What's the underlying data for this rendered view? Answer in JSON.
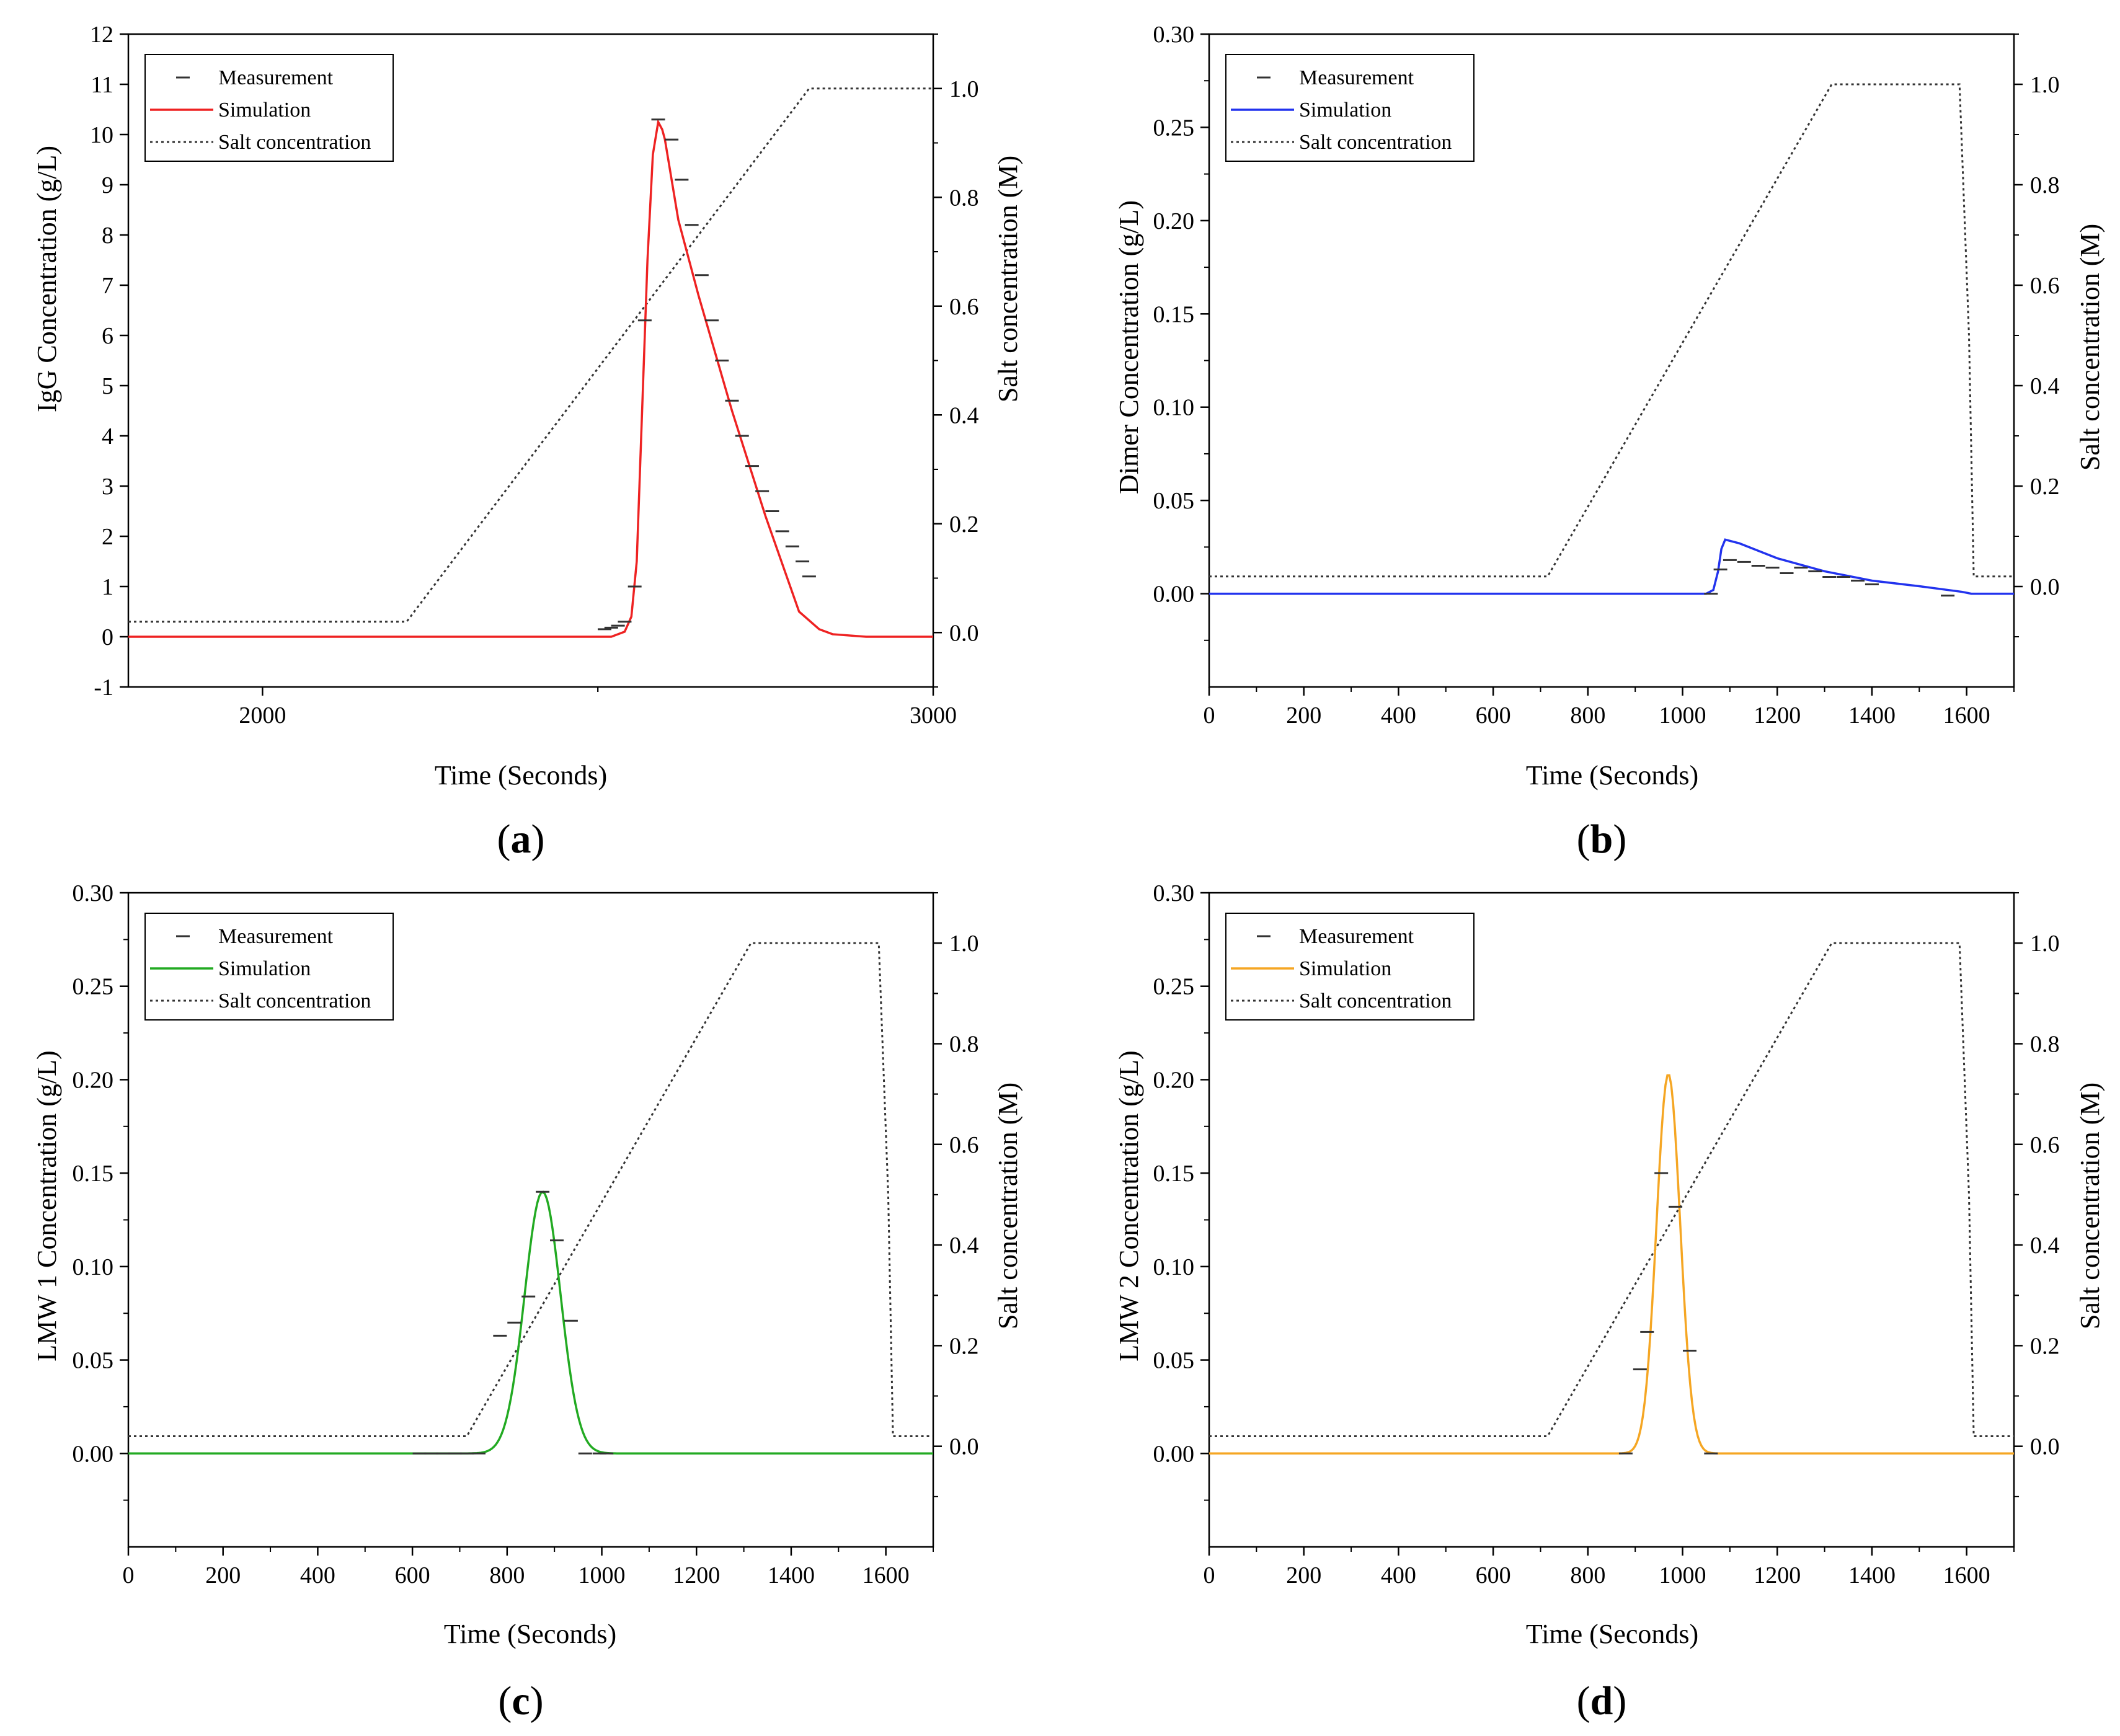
{
  "colors": {
    "axis": "#000000",
    "salt_line": "#333333",
    "measurement": "#333333",
    "sim_a": "#ee2222",
    "sim_b": "#2233ee",
    "sim_c": "#22aa22",
    "sim_d": "#f5a623"
  },
  "chart_data": [
    {
      "id": "a",
      "type": "line",
      "panel_label": "(a)",
      "panel_letter": "a",
      "xlabel": "Time (Seconds)",
      "ylabel": "IgG Concentration (g/L)",
      "y2label": "Salt concentration (M)",
      "xlim": [
        1800,
        3000
      ],
      "ylim": [
        -1,
        12
      ],
      "y2lim": [
        -0.1,
        1.1
      ],
      "xticks": [
        2000,
        3000
      ],
      "xtick_labels": [
        "2000",
        "3000"
      ],
      "yticks": [
        -1,
        0,
        1,
        2,
        3,
        4,
        5,
        6,
        7,
        8,
        9,
        10,
        11,
        12
      ],
      "ytick_labels": [
        "-1",
        "0",
        "1",
        "2",
        "3",
        "4",
        "5",
        "6",
        "7",
        "8",
        "9",
        "10",
        "11",
        "12"
      ],
      "y2ticks": [
        0,
        0.2,
        0.4,
        0.6,
        0.8,
        1.0
      ],
      "y2tick_labels": [
        "0.0",
        "0.2",
        "0.4",
        "0.6",
        "0.8",
        "1.0"
      ],
      "legend": [
        "Measurement",
        "Simulation",
        "Salt concentration"
      ],
      "legend_position": "top-left",
      "series": [
        {
          "name": "Simulation",
          "kind": "line",
          "color_key": "sim_a",
          "x": [
            1800,
            2400,
            2520,
            2540,
            2550,
            2558,
            2566,
            2574,
            2582,
            2590,
            2596,
            2600,
            2620,
            2650,
            2700,
            2750,
            2800,
            2830,
            2850,
            2900,
            3000
          ],
          "y": [
            0,
            0,
            0,
            0.1,
            0.4,
            1.5,
            4.5,
            7.5,
            9.6,
            10.25,
            10.1,
            9.9,
            8.3,
            6.8,
            4.5,
            2.4,
            0.5,
            0.15,
            0.05,
            0,
            0
          ]
        },
        {
          "name": "Measurement",
          "kind": "points",
          "color_key": "measurement",
          "x": [
            2510,
            2520,
            2530,
            2540,
            2555,
            2570,
            2590,
            2610,
            2625,
            2640,
            2655,
            2670,
            2685,
            2700,
            2715,
            2730,
            2745,
            2760,
            2775,
            2790,
            2805,
            2815
          ],
          "y": [
            0.15,
            0.18,
            0.22,
            0.3,
            1.0,
            6.3,
            10.3,
            9.9,
            9.1,
            8.2,
            7.2,
            6.3,
            5.5,
            4.7,
            4.0,
            3.4,
            2.9,
            2.5,
            2.1,
            1.8,
            1.5,
            1.2
          ]
        },
        {
          "name": "Salt concentration",
          "kind": "dotted",
          "color_key": "salt_line",
          "axis": "y2",
          "x": [
            1800,
            2215,
            2815,
            3000
          ],
          "y": [
            0.02,
            0.02,
            1.0,
            1.0
          ]
        }
      ]
    },
    {
      "id": "b",
      "type": "line",
      "panel_label": "(b)",
      "panel_letter": "b",
      "xlabel": "Time (Seconds)",
      "ylabel": "Dimer Concentration (g/L)",
      "y2label": "Salt concentration (M)",
      "xlim": [
        0,
        1700
      ],
      "ylim": [
        -0.05,
        0.3
      ],
      "y2lim": [
        -0.2,
        1.1
      ],
      "xticks": [
        0,
        200,
        400,
        600,
        800,
        1000,
        1200,
        1400,
        1600
      ],
      "xtick_labels": [
        "0",
        "200",
        "400",
        "600",
        "800",
        "1000",
        "1200",
        "1400",
        "1600"
      ],
      "yticks": [
        0,
        0.05,
        0.1,
        0.15,
        0.2,
        0.25,
        0.3
      ],
      "ytick_labels": [
        "0.00",
        "0.05",
        "0.10",
        "0.15",
        "0.20",
        "0.25",
        "0.30"
      ],
      "y2ticks": [
        0,
        0.2,
        0.4,
        0.6,
        0.8,
        1.0
      ],
      "y2tick_labels": [
        "0.0",
        "0.2",
        "0.4",
        "0.6",
        "0.8",
        "1.0"
      ],
      "legend": [
        "Measurement",
        "Simulation",
        "Salt concentration"
      ],
      "legend_position": "top-left",
      "series": [
        {
          "name": "Simulation",
          "kind": "line",
          "color_key": "sim_b",
          "x": [
            0,
            1050,
            1065,
            1075,
            1082,
            1090,
            1120,
            1200,
            1300,
            1400,
            1500,
            1590,
            1610,
            1700
          ],
          "y": [
            0,
            0,
            0.002,
            0.012,
            0.024,
            0.029,
            0.027,
            0.019,
            0.012,
            0.007,
            0.004,
            0.001,
            0,
            0
          ]
        },
        {
          "name": "Measurement",
          "kind": "points",
          "color_key": "measurement",
          "x": [
            1060,
            1080,
            1100,
            1130,
            1160,
            1190,
            1220,
            1250,
            1280,
            1310,
            1340,
            1370,
            1400,
            1560
          ],
          "y": [
            0.0,
            0.013,
            0.018,
            0.017,
            0.015,
            0.014,
            0.011,
            0.014,
            0.012,
            0.009,
            0.009,
            0.007,
            0.005,
            -0.001
          ]
        },
        {
          "name": "Salt concentration",
          "kind": "dotted",
          "color_key": "salt_line",
          "axis": "y2",
          "x": [
            0,
            715,
            1315,
            1585,
            1605,
            1615,
            1700
          ],
          "y": [
            0.02,
            0.02,
            1.0,
            1.0,
            0.5,
            0.02,
            0.02
          ]
        }
      ]
    },
    {
      "id": "c",
      "type": "line",
      "panel_label": "(c)",
      "panel_letter": "c",
      "xlabel": "Time (Seconds)",
      "ylabel": "LMW 1 Concentration (g/L)",
      "y2label": "Salt concentration (M)",
      "xlim": [
        0,
        1700
      ],
      "ylim": [
        -0.05,
        0.3
      ],
      "y2lim": [
        -0.2,
        1.1
      ],
      "xticks": [
        0,
        200,
        400,
        600,
        800,
        1000,
        1200,
        1400,
        1600
      ],
      "xtick_labels": [
        "0",
        "200",
        "400",
        "600",
        "800",
        "1000",
        "1200",
        "1400",
        "1600"
      ],
      "yticks": [
        0,
        0.05,
        0.1,
        0.15,
        0.2,
        0.25,
        0.3
      ],
      "ytick_labels": [
        "0.00",
        "0.05",
        "0.10",
        "0.15",
        "0.20",
        "0.25",
        "0.30"
      ],
      "y2ticks": [
        0,
        0.2,
        0.4,
        0.6,
        0.8,
        1.0
      ],
      "y2tick_labels": [
        "0.0",
        "0.2",
        "0.4",
        "0.6",
        "0.8",
        "1.0"
      ],
      "legend": [
        "Measurement",
        "Simulation",
        "Salt concentration"
      ],
      "legend_position": "top-left",
      "gauss": {
        "amp": 0.14,
        "center": 875,
        "sigma": 38,
        "color_key": "sim_c"
      },
      "series": [
        {
          "name": "Measurement",
          "kind": "points",
          "color_key": "measurement",
          "x": [
            615,
            640,
            665,
            690,
            715,
            740,
            785,
            815,
            845,
            875,
            905,
            935,
            965,
            995,
            1010
          ],
          "y": [
            0,
            0,
            0,
            0,
            0,
            0,
            0.063,
            0.07,
            0.084,
            0.14,
            0.114,
            0.071,
            0,
            0,
            0
          ]
        },
        {
          "name": "Salt concentration",
          "kind": "dotted",
          "color_key": "salt_line",
          "axis": "y2",
          "x": [
            0,
            715,
            1315,
            1585,
            1605,
            1615,
            1700
          ],
          "y": [
            0.02,
            0.02,
            1.0,
            1.0,
            0.5,
            0.02,
            0.02
          ]
        }
      ]
    },
    {
      "id": "d",
      "type": "line",
      "panel_label": "(d)",
      "panel_letter": "d",
      "xlabel": "Time (Seconds)",
      "ylabel": "LMW 2 Concentration (g/L)",
      "y2label": "Salt concentration (M)",
      "xlim": [
        0,
        1700
      ],
      "ylim": [
        -0.05,
        0.3
      ],
      "y2lim": [
        -0.2,
        1.1
      ],
      "xticks": [
        0,
        200,
        400,
        600,
        800,
        1000,
        1200,
        1400,
        1600
      ],
      "xtick_labels": [
        "0",
        "200",
        "400",
        "600",
        "800",
        "1000",
        "1200",
        "1400",
        "1600"
      ],
      "yticks": [
        0,
        0.05,
        0.1,
        0.15,
        0.2,
        0.25,
        0.3
      ],
      "ytick_labels": [
        "0.00",
        "0.05",
        "0.10",
        "0.15",
        "0.20",
        "0.25",
        "0.30"
      ],
      "y2ticks": [
        0,
        0.2,
        0.4,
        0.6,
        0.8,
        1.0
      ],
      "y2tick_labels": [
        "0.0",
        "0.2",
        "0.4",
        "0.6",
        "0.8",
        "1.0"
      ],
      "legend": [
        "Measurement",
        "Simulation",
        "Salt concentration"
      ],
      "legend_position": "top-left",
      "gauss": {
        "amp": 0.203,
        "center": 970,
        "sigma": 25,
        "color_key": "sim_d"
      },
      "series": [
        {
          "name": "Measurement",
          "kind": "points",
          "color_key": "measurement",
          "x": [
            880,
            910,
            925,
            955,
            985,
            1015,
            1060
          ],
          "y": [
            0,
            0.045,
            0.065,
            0.15,
            0.132,
            0.055,
            0
          ]
        },
        {
          "name": "Salt concentration",
          "kind": "dotted",
          "color_key": "salt_line",
          "axis": "y2",
          "x": [
            0,
            715,
            1315,
            1585,
            1605,
            1615,
            1700
          ],
          "y": [
            0.02,
            0.02,
            1.0,
            1.0,
            0.5,
            0.02,
            0.02
          ]
        }
      ]
    }
  ]
}
